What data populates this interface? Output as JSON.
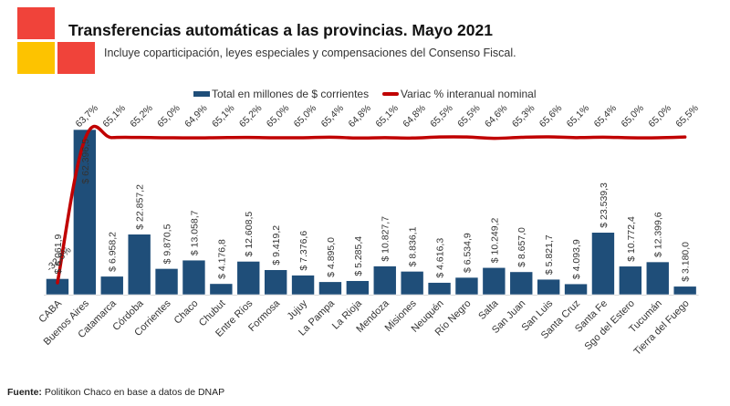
{
  "header": {
    "title": "Transferencias automáticas a las provincias. Mayo 2021",
    "subtitle": "Incluye coparticipación, leyes especiales y compensaciones del Consenso Fiscal.",
    "logo_colors": [
      "#f0433a",
      "#fdc300",
      "#f0433a"
    ]
  },
  "footer": {
    "source_label": "Fuente:",
    "source_text": " Politikon Chaco en base a datos de DNAP"
  },
  "chart_data": {
    "type": "bar",
    "title": "Transferencias automáticas a las provincias. Mayo 2021",
    "xlabel": "",
    "ylabel": "",
    "grid": false,
    "legend_position": "top-center",
    "categories": [
      "CABA",
      "Buenos Aires",
      "Catamarca",
      "Córdoba",
      "Corrientes",
      "Chaco",
      "Chubut",
      "Entre Ríos",
      "Formosa",
      "Jujuy",
      "La Pampa",
      "La Rioja",
      "Mendoza",
      "Misiones",
      "Neuquén",
      "Río Negro",
      "Salta",
      "San Juan",
      "San Luis",
      "Santa Cruz",
      "Santa Fe",
      "Sgo del Estero",
      "Tucumán",
      "Tierra del Fuego"
    ],
    "series": [
      {
        "name": "Total en millones de $ corrientes",
        "type": "bar",
        "color": "#1f4e79",
        "values": [
          6061.9,
          62396.5,
          6958.2,
          22857.2,
          9870.5,
          13058.7,
          4176.8,
          12608.5,
          9419.2,
          7376.6,
          4895.0,
          5285.4,
          10827.7,
          8836.1,
          4616.3,
          6534.9,
          10249.2,
          8657.0,
          5821.7,
          4093.9,
          23539.3,
          10772.4,
          12399.6,
          3180.0
        ],
        "labels": [
          "$ 6.061,9",
          "$ 62.396,5",
          "$ 6.958,2",
          "$ 22.857,2",
          "$ 9.870,5",
          "$ 13.058,7",
          "$ 4.176,8",
          "$ 12.608,5",
          "$ 9.419,2",
          "$ 7.376,6",
          "$ 4.895,0",
          "$ 5.285,4",
          "$ 10.827,7",
          "$ 8.836,1",
          "$ 4.616,3",
          "$ 6.534,9",
          "$ 10.249,2",
          "$ 8.657,0",
          "$ 5.821,7",
          "$ 4.093,9",
          "$ 23.539,3",
          "$ 10.772,4",
          "$ 12.399,6",
          "$ 3.180,0"
        ]
      },
      {
        "name": "Variac % interanual nominal",
        "type": "line",
        "color": "#c00000",
        "values": [
          -32.8,
          63.7,
          65.1,
          65.2,
          65.0,
          64.9,
          65.1,
          65.2,
          65.0,
          65.0,
          65.4,
          64.8,
          65.1,
          64.8,
          65.5,
          65.5,
          64.6,
          65.3,
          65.6,
          65.1,
          65.4,
          65.0,
          65.0,
          65.5
        ],
        "labels": [
          "-32,8%",
          "63,7%",
          "65,1%",
          "65,2%",
          "65,0%",
          "64,9%",
          "65,1%",
          "65,2%",
          "65,0%",
          "65,0%",
          "65,4%",
          "64,8%",
          "65,1%",
          "64,8%",
          "65,5%",
          "65,5%",
          "64,6%",
          "65,3%",
          "65,6%",
          "65,1%",
          "65,4%",
          "65,0%",
          "65,0%",
          "65,5%"
        ]
      }
    ],
    "ylim_bars": [
      0,
      62396.5
    ],
    "ylim_line": [
      -32.8,
      65.6
    ]
  }
}
